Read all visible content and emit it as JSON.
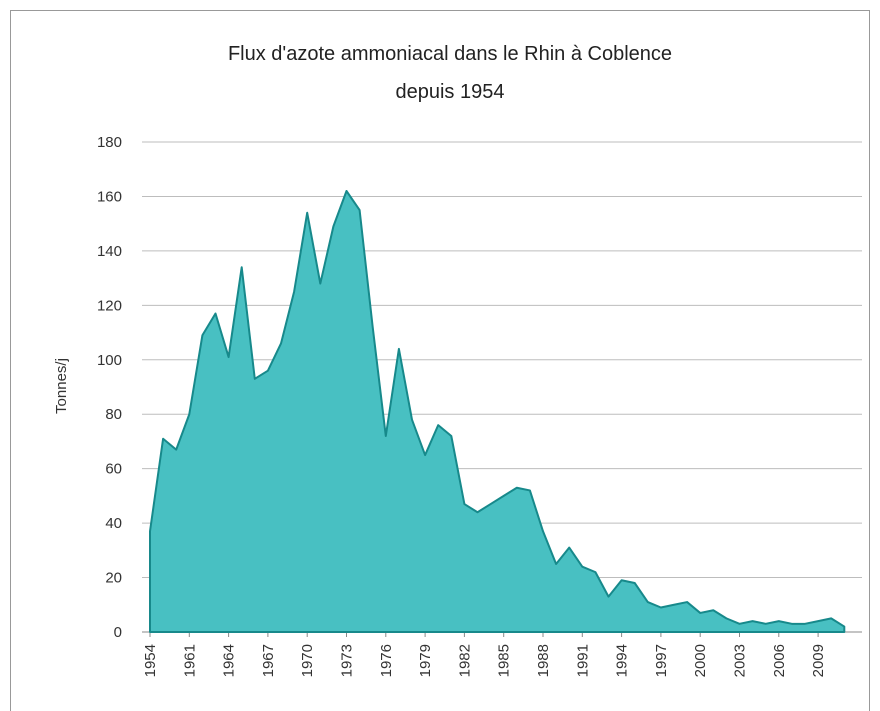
{
  "chart_data": {
    "type": "area",
    "title": [
      "Flux d'azote ammoniacal dans le Rhin à Coblence",
      "depuis 1954"
    ],
    "y_label": "Tonnes/j",
    "categories": [
      "1954",
      null,
      null,
      "1961",
      null,
      null,
      "1964",
      null,
      null,
      "1967",
      null,
      null,
      "1970",
      null,
      null,
      "1973",
      null,
      null,
      "1976",
      null,
      null,
      "1979",
      null,
      null,
      "1982",
      null,
      null,
      "1985",
      null,
      null,
      "1988",
      null,
      null,
      "1991",
      null,
      null,
      "1994",
      null,
      null,
      "1997",
      null,
      null,
      "2000",
      null,
      null,
      "2003",
      null,
      null,
      "2006",
      null,
      null,
      "2009",
      null,
      null
    ],
    "series": [
      {
        "name": "Tonnes/j",
        "color": "#48c0c2",
        "values": [
          37,
          71,
          67,
          80,
          109,
          117,
          101,
          134,
          93,
          96,
          106,
          125,
          154,
          128,
          149,
          162,
          155,
          112,
          72,
          104,
          78,
          65,
          76,
          72,
          47,
          44,
          47,
          50,
          53,
          52,
          37,
          25,
          31,
          24,
          22,
          13,
          19,
          18,
          11,
          9,
          10,
          11,
          7,
          8,
          5,
          3,
          4,
          3,
          4,
          3,
          3,
          4,
          5,
          2
        ]
      }
    ],
    "ylim": [
      0,
      180
    ],
    "yticks": [
      0,
      20,
      40,
      60,
      80,
      100,
      120,
      140,
      160,
      180
    ],
    "grid": true
  }
}
